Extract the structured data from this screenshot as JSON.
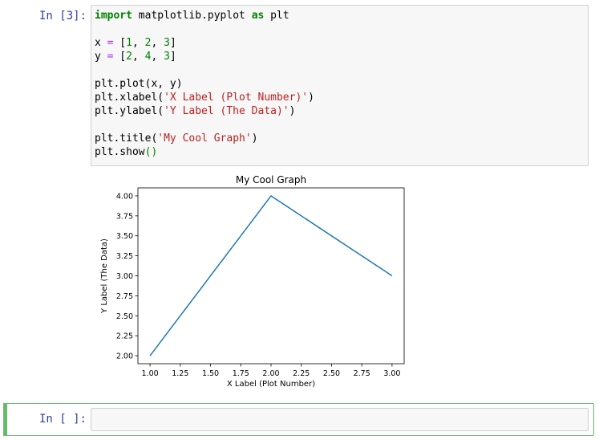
{
  "cell1": {
    "prompt": "In [3]:",
    "code_lines": [
      [
        {
          "t": "import",
          "c": "kw"
        },
        {
          "t": " matplotlib.pyplot ",
          "c": ""
        },
        {
          "t": "as",
          "c": "kw"
        },
        {
          "t": " plt",
          "c": ""
        }
      ],
      [],
      [
        {
          "t": "x ",
          "c": ""
        },
        {
          "t": "=",
          "c": "op"
        },
        {
          "t": " [",
          "c": ""
        },
        {
          "t": "1",
          "c": "num"
        },
        {
          "t": ", ",
          "c": ""
        },
        {
          "t": "2",
          "c": "num"
        },
        {
          "t": ", ",
          "c": ""
        },
        {
          "t": "3",
          "c": "num"
        },
        {
          "t": "]",
          "c": ""
        }
      ],
      [
        {
          "t": "y ",
          "c": ""
        },
        {
          "t": "=",
          "c": "op"
        },
        {
          "t": " [",
          "c": ""
        },
        {
          "t": "2",
          "c": "num"
        },
        {
          "t": ", ",
          "c": ""
        },
        {
          "t": "4",
          "c": "num"
        },
        {
          "t": ", ",
          "c": ""
        },
        {
          "t": "3",
          "c": "num"
        },
        {
          "t": "]",
          "c": ""
        }
      ],
      [],
      [
        {
          "t": "plt.plot(x, y)",
          "c": ""
        }
      ],
      [
        {
          "t": "plt.xlabel(",
          "c": ""
        },
        {
          "t": "'X Label (Plot Number)'",
          "c": "str"
        },
        {
          "t": ")",
          "c": ""
        }
      ],
      [
        {
          "t": "plt.ylabel(",
          "c": ""
        },
        {
          "t": "'Y Label (The Data)'",
          "c": "str"
        },
        {
          "t": ")",
          "c": ""
        }
      ],
      [],
      [
        {
          "t": "plt.title(",
          "c": ""
        },
        {
          "t": "'My Cool Graph'",
          "c": "str"
        },
        {
          "t": ")",
          "c": ""
        }
      ],
      [
        {
          "t": "plt.show",
          "c": ""
        },
        {
          "t": "()",
          "c": "paren"
        }
      ]
    ]
  },
  "cell2": {
    "prompt": "In [ ]:",
    "code": ""
  },
  "colors": {
    "line": "#1f77b4",
    "prompt": "#303f9f",
    "active_cell": "#66bb6a"
  },
  "chart_data": {
    "type": "line",
    "title": "My Cool Graph",
    "xlabel": "X Label (Plot Number)",
    "ylabel": "Y Label (The Data)",
    "x": [
      1,
      2,
      3
    ],
    "series": [
      {
        "values": [
          2,
          4,
          3
        ]
      }
    ],
    "xlim": [
      0.9,
      3.1
    ],
    "ylim": [
      1.9,
      4.1
    ],
    "xticks": [
      "1.00",
      "1.25",
      "1.50",
      "1.75",
      "2.00",
      "2.25",
      "2.50",
      "2.75",
      "3.00"
    ],
    "yticks": [
      "2.00",
      "2.25",
      "2.50",
      "2.75",
      "3.00",
      "3.25",
      "3.50",
      "3.75",
      "4.00"
    ],
    "grid": false
  }
}
